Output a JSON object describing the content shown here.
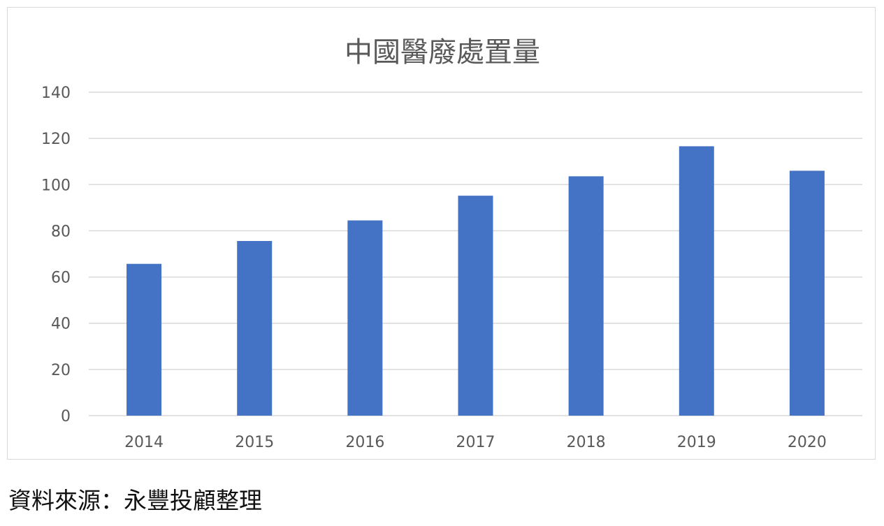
{
  "source_note": "資料來源：永豐投顧整理",
  "chart_data": {
    "type": "bar",
    "title": "中國醫廢處置量",
    "xlabel": "",
    "ylabel": "",
    "categories": [
      "2014",
      "2015",
      "2016",
      "2017",
      "2018",
      "2019",
      "2020"
    ],
    "values": [
      65.7,
      75.6,
      84.5,
      95.2,
      103.6,
      116.6,
      106.0
    ],
    "ylim": [
      0,
      140
    ],
    "yticks": [
      0,
      20,
      40,
      60,
      80,
      100,
      120,
      140
    ],
    "grid": true,
    "legend": "none",
    "colors": {
      "bar": "#4472c4",
      "grid": "#d9d9d9",
      "tick_label": "#595959",
      "title": "#595959"
    }
  }
}
